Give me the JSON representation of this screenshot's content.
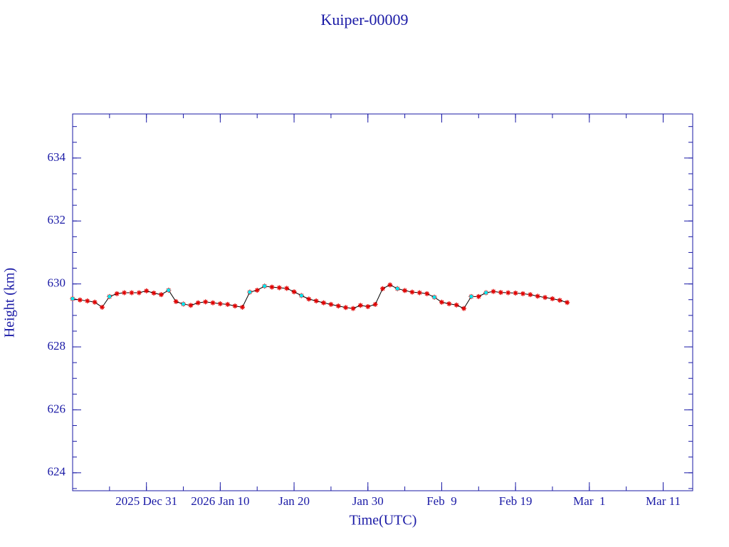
{
  "chart_data": {
    "type": "line",
    "title": "Kuiper-00009",
    "x_label": "Time(UTC)",
    "y_label": "Height (km)",
    "x": [
      "2025-12-21",
      "2025-12-22",
      "2025-12-23",
      "2025-12-24",
      "2025-12-25",
      "2025-12-26",
      "2025-12-27",
      "2025-12-28",
      "2025-12-29",
      "2025-12-30",
      "2025-12-31",
      "2026-01-01",
      "2026-01-02",
      "2026-01-03",
      "2026-01-04",
      "2026-01-05",
      "2026-01-06",
      "2026-01-07",
      "2026-01-08",
      "2026-01-09",
      "2026-01-10",
      "2026-01-11",
      "2026-01-12",
      "2026-01-13",
      "2026-01-14",
      "2026-01-15",
      "2026-01-16",
      "2026-01-17",
      "2026-01-18",
      "2026-01-19",
      "2026-01-20",
      "2026-01-21",
      "2026-01-22",
      "2026-01-23",
      "2026-01-24",
      "2026-01-25",
      "2026-01-26",
      "2026-01-27",
      "2026-01-28",
      "2026-01-29",
      "2026-01-30",
      "2026-01-31",
      "2026-02-01",
      "2026-02-02",
      "2026-02-03",
      "2026-02-04",
      "2026-02-05",
      "2026-02-06",
      "2026-02-07",
      "2026-02-08",
      "2026-02-09",
      "2026-02-10",
      "2026-02-11",
      "2026-02-12",
      "2026-02-13",
      "2026-02-14",
      "2026-02-15",
      "2026-02-16",
      "2026-02-17",
      "2026-02-18",
      "2026-02-19",
      "2026-02-20",
      "2026-02-21",
      "2026-02-22",
      "2026-02-23",
      "2026-02-24",
      "2026-02-25",
      "2026-02-26"
    ],
    "series": [
      {
        "color": "#000000",
        "marker": "star",
        "marker_color": "#e00000",
        "line": true,
        "values": [
          629.53,
          629.49,
          629.46,
          629.42,
          629.26,
          629.6,
          629.69,
          629.72,
          629.72,
          629.72,
          629.78,
          629.71,
          629.66,
          629.8,
          629.44,
          629.36,
          629.32,
          629.4,
          629.43,
          629.4,
          629.37,
          629.35,
          629.3,
          629.26,
          629.74,
          629.8,
          629.93,
          629.9,
          629.88,
          629.86,
          629.75,
          629.63,
          629.52,
          629.46,
          629.4,
          629.35,
          629.3,
          629.25,
          629.22,
          629.32,
          629.28,
          629.35,
          629.85,
          629.97,
          629.85,
          629.79,
          629.74,
          629.72,
          629.69,
          629.58,
          629.42,
          629.37,
          629.33,
          629.22,
          629.6,
          629.6,
          629.72,
          629.76,
          629.73,
          629.72,
          629.71,
          629.69,
          629.66,
          629.61,
          629.57,
          629.53,
          629.48,
          629.41
        ]
      },
      {
        "color": "#00e5ee",
        "marker": "dot",
        "marker_color": "#00e5ee",
        "line": false,
        "values": [
          629.53,
          null,
          null,
          null,
          null,
          629.6,
          null,
          null,
          null,
          null,
          null,
          null,
          null,
          629.8,
          null,
          629.36,
          null,
          null,
          null,
          null,
          null,
          null,
          null,
          null,
          629.74,
          null,
          629.93,
          null,
          null,
          null,
          null,
          629.63,
          null,
          null,
          null,
          null,
          null,
          null,
          null,
          null,
          null,
          null,
          null,
          null,
          629.85,
          null,
          null,
          null,
          null,
          629.58,
          null,
          null,
          null,
          null,
          629.6,
          null,
          629.72,
          null,
          null,
          null,
          null,
          null,
          null,
          null,
          null,
          null,
          null,
          null
        ]
      }
    ],
    "xlim": [
      "2025-12-21",
      "2026-03-15"
    ],
    "xticks": [
      {
        "value": "2025-12-31",
        "label": "2025 Dec 31"
      },
      {
        "value": "2026-01-10",
        "label": "2026 Jan 10"
      },
      {
        "value": "2026-01-20",
        "label": "Jan 20"
      },
      {
        "value": "2026-01-30",
        "label": "Jan 30"
      },
      {
        "value": "2026-02-09",
        "label": "Feb  9"
      },
      {
        "value": "2026-02-19",
        "label": "Feb 19"
      },
      {
        "value": "2026-03-01",
        "label": "Mar  1"
      },
      {
        "value": "2026-03-11",
        "label": "Mar 11"
      }
    ],
    "ylim": [
      623.43,
      635.4
    ],
    "yticks": [
      624,
      626,
      628,
      630,
      632,
      634
    ],
    "axis_color": "#1a1aa6"
  }
}
